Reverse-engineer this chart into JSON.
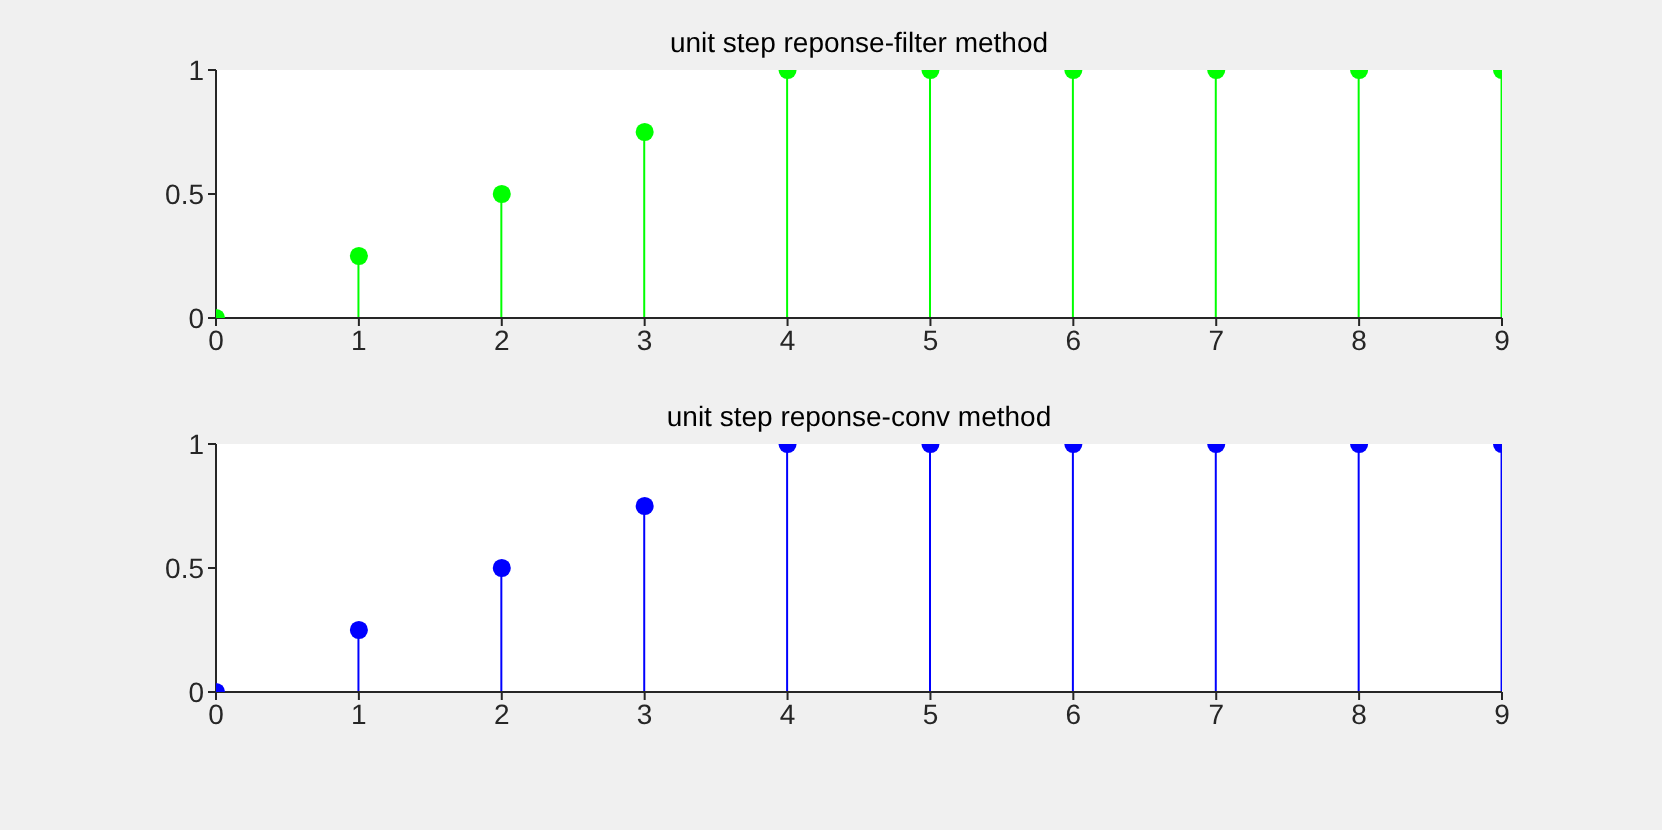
{
  "chart_data": [
    {
      "type": "lollipop",
      "title": "unit step reponse-filter method",
      "x": [
        0,
        1,
        2,
        3,
        4,
        5,
        6,
        7,
        8,
        9
      ],
      "values": [
        0,
        0.25,
        0.5,
        0.75,
        1,
        1,
        1,
        1,
        1,
        1
      ],
      "color": "#00ff00",
      "xlim": [
        0,
        9
      ],
      "xticks": [
        0,
        1,
        2,
        3,
        4,
        5,
        6,
        7,
        8,
        9
      ],
      "ylim": [
        0,
        1
      ],
      "yticks": [
        0,
        0.5,
        1
      ],
      "marker": "circle"
    },
    {
      "type": "lollipop",
      "title": "unit step reponse-conv method",
      "x": [
        0,
        1,
        2,
        3,
        4,
        5,
        6,
        7,
        8,
        9
      ],
      "values": [
        0,
        0.25,
        0.5,
        0.75,
        1,
        1,
        1,
        1,
        1,
        1
      ],
      "color": "#0000ff",
      "xlim": [
        0,
        9
      ],
      "xticks": [
        0,
        1,
        2,
        3,
        4,
        5,
        6,
        7,
        8,
        9
      ],
      "ylim": [
        0,
        1
      ],
      "yticks": [
        0,
        0.5,
        1
      ],
      "marker": "circle"
    }
  ]
}
